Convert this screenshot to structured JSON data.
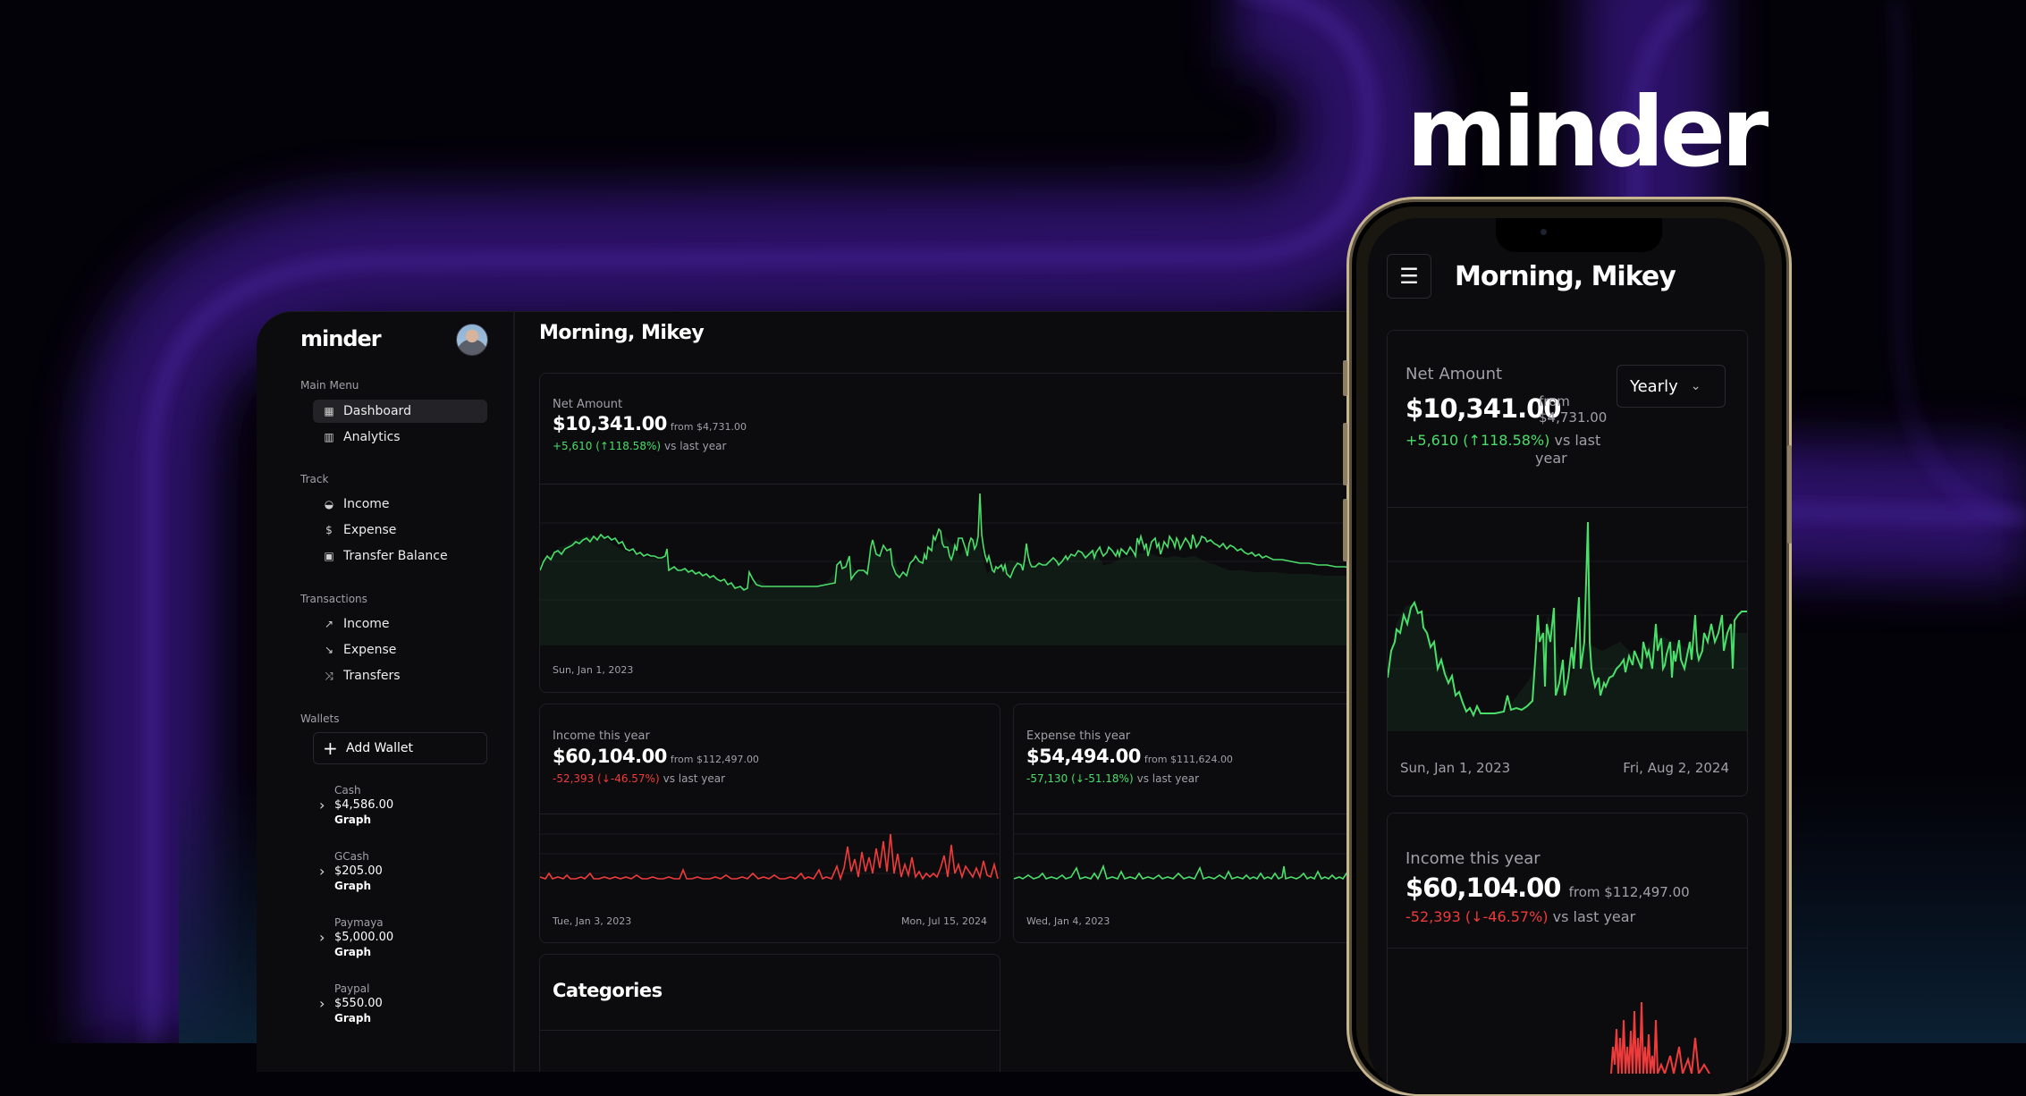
{
  "hero": {
    "brand": "minder"
  },
  "desktop": {
    "brand": "minder",
    "sidebar": {
      "main_menu_title": "Main Menu",
      "main_menu": [
        {
          "label": "Dashboard",
          "icon": "dashboard-icon",
          "active": true
        },
        {
          "label": "Analytics",
          "icon": "bar-chart-icon",
          "active": false
        }
      ],
      "track_title": "Track",
      "track": [
        {
          "label": "Income",
          "icon": "piggy-bank-icon"
        },
        {
          "label": "Expense",
          "icon": "dollar-icon"
        },
        {
          "label": "Transfer Balance",
          "icon": "wallet-icon"
        }
      ],
      "transactions_title": "Transactions",
      "transactions": [
        {
          "label": "Income",
          "icon": "trend-up-icon"
        },
        {
          "label": "Expense",
          "icon": "trend-down-icon"
        },
        {
          "label": "Transfers",
          "icon": "shuffle-icon"
        }
      ],
      "wallets_title": "Wallets",
      "add_wallet": "Add Wallet",
      "wallets": [
        {
          "name": "Cash",
          "amount": "$4,586.00",
          "graph": "Graph"
        },
        {
          "name": "GCash",
          "amount": "$205.00",
          "graph": "Graph"
        },
        {
          "name": "Paymaya",
          "amount": "$5,000.00",
          "graph": "Graph"
        },
        {
          "name": "Paypal",
          "amount": "$550.00",
          "graph": "Graph"
        }
      ]
    },
    "greeting": "Morning, Mikey",
    "net": {
      "label": "Net Amount",
      "amount": "$10,341.00",
      "from": "from $4,731.00",
      "change": "+5,610 (↑118.58%)",
      "vs": "vs last year",
      "start_date": "Sun, Jan 1, 2023"
    },
    "income": {
      "label": "Income this year",
      "amount": "$60,104.00",
      "from": "from $112,497.00",
      "change": "-52,393 (↓-46.57%)",
      "vs": "vs last year",
      "start_date": "Tue, Jan 3, 2023",
      "end_date": "Mon, Jul 15, 2024"
    },
    "expense": {
      "label": "Expense this year",
      "amount": "$54,494.00",
      "from": "from $111,624.00",
      "change": "-57,130 (↓-51.18%)",
      "vs": "vs last year",
      "start_date": "Wed, Jan 4, 2023"
    },
    "categories": {
      "title": "Categories"
    }
  },
  "phone": {
    "greeting": "Morning, Mikey",
    "period_select": "Yearly",
    "net": {
      "label": "Net Amount",
      "amount": "$10,341.00",
      "from_1": "from",
      "from_2": "$4,731.00",
      "change": "+5,610 (↑118.58%)",
      "vs_1": "vs last",
      "vs_2": "year",
      "start_date": "Sun, Jan 1, 2023",
      "end_date": "Fri, Aug 2, 2024"
    },
    "income": {
      "label": "Income this year",
      "amount": "$60,104.00",
      "from": "from $112,497.00",
      "change": "-52,393 (↓-46.57%)",
      "vs": "vs last year"
    }
  },
  "colors": {
    "positive": "#4ade6a",
    "negative": "#ef3b3b",
    "glow": "#7a3cff",
    "card_bg": "#0c0c0e"
  }
}
